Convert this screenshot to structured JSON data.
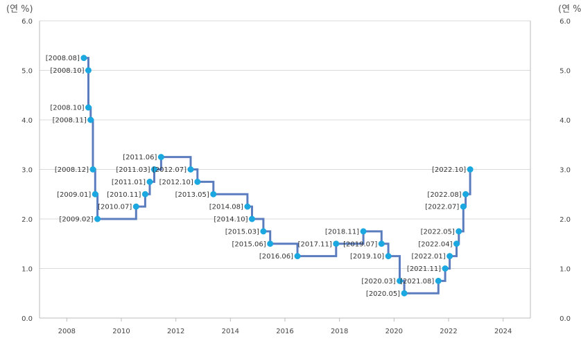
{
  "chart_data": {
    "type": "line",
    "step": true,
    "unit_left": "(연 %)",
    "unit_right": "(연 %",
    "title": "",
    "xlabel": "",
    "ylabel": "",
    "xlim": [
      2007,
      2025
    ],
    "ylim": [
      0,
      6
    ],
    "x_ticks": [
      "2008",
      "2010",
      "2012",
      "2014",
      "2016",
      "2018",
      "2020",
      "2022",
      "2024"
    ],
    "y_ticks": [
      "0.0",
      "1.0",
      "2.0",
      "3.0",
      "4.0",
      "5.0",
      "6.0"
    ],
    "grid": "horizontal",
    "colors": {
      "line": "#5b7dbf",
      "point": "#1ba8e0",
      "grid": "#d9d9d9",
      "axis": "#bbbbbb"
    },
    "series": [
      {
        "values": [
          {
            "label": "[2008.08]",
            "date": "2008-08",
            "y": 5.25
          },
          {
            "label": "[2008.10]",
            "date": "2008-10",
            "y": 5.0
          },
          {
            "label": "[2008.10]",
            "date": "2008-10",
            "y": 4.25
          },
          {
            "label": "[2008.11]",
            "date": "2008-11",
            "y": 4.0
          },
          {
            "label": "[2008.12]",
            "date": "2008-12",
            "y": 3.0
          },
          {
            "label": "[2009.01]",
            "date": "2009-01",
            "y": 2.5
          },
          {
            "label": "[2009.02]",
            "date": "2009-02",
            "y": 2.0
          },
          {
            "label": "[2010.07]",
            "date": "2010-07",
            "y": 2.25
          },
          {
            "label": "[2010.11]",
            "date": "2010-11",
            "y": 2.5
          },
          {
            "label": "[2011.01]",
            "date": "2011-01",
            "y": 2.75
          },
          {
            "label": "[2011.03]",
            "date": "2011-03",
            "y": 3.0
          },
          {
            "label": "[2011.06]",
            "date": "2011-06",
            "y": 3.25
          },
          {
            "label": "[2012.07]",
            "date": "2012-07",
            "y": 3.0
          },
          {
            "label": "[2012.10]",
            "date": "2012-10",
            "y": 2.75
          },
          {
            "label": "[2013.05]",
            "date": "2013-05",
            "y": 2.5
          },
          {
            "label": "[2014.08]",
            "date": "2014-08",
            "y": 2.25
          },
          {
            "label": "[2014.10]",
            "date": "2014-10",
            "y": 2.0
          },
          {
            "label": "[2015.03]",
            "date": "2015-03",
            "y": 1.75
          },
          {
            "label": "[2015.06]",
            "date": "2015-06",
            "y": 1.5
          },
          {
            "label": "[2016.06]",
            "date": "2016-06",
            "y": 1.25
          },
          {
            "label": "[2017.11]",
            "date": "2017-11",
            "y": 1.5
          },
          {
            "label": "[2018.11]",
            "date": "2018-11",
            "y": 1.75
          },
          {
            "label": "[2019.07]",
            "date": "2019-07",
            "y": 1.5
          },
          {
            "label": "[2019.10]",
            "date": "2019-10",
            "y": 1.25
          },
          {
            "label": "[2020.03]",
            "date": "2020-03",
            "y": 0.75
          },
          {
            "label": "[2020.05]",
            "date": "2020-05",
            "y": 0.5
          },
          {
            "label": "[2021.08]",
            "date": "2021-08",
            "y": 0.75
          },
          {
            "label": "[2021.11]",
            "date": "2021-11",
            "y": 1.0
          },
          {
            "label": "[2022.01]",
            "date": "2022-01",
            "y": 1.25
          },
          {
            "label": "[2022.04]",
            "date": "2022-04",
            "y": 1.5
          },
          {
            "label": "[2022.05]",
            "date": "2022-05",
            "y": 1.75
          },
          {
            "label": "[2022.07]",
            "date": "2022-07",
            "y": 2.25
          },
          {
            "label": "[2022.08]",
            "date": "2022-08",
            "y": 2.5
          },
          {
            "label": "[2022.10]",
            "date": "2022-10",
            "y": 3.0
          }
        ]
      }
    ]
  }
}
